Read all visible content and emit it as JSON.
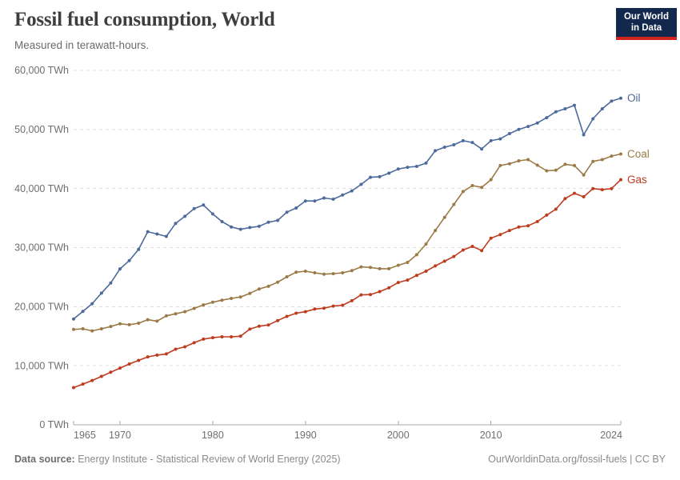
{
  "header": {
    "title": "Fossil fuel consumption, World",
    "subtitle": "Measured in terawatt-hours.",
    "logo": {
      "line1": "Our World",
      "line2": "in Data",
      "bg_color": "#12294D",
      "accent_color": "#CE261E"
    }
  },
  "footer": {
    "source_label": "Data source:",
    "source_text": " Energy Institute - Statistical Review of World Energy (2025)",
    "right_text": "OurWorldinData.org/fossil-fuels | CC BY"
  },
  "chart_data": {
    "type": "line",
    "title": "Fossil fuel consumption, World",
    "subtitle": "Measured in terawatt-hours.",
    "xlabel": "",
    "ylabel": "TWh",
    "xlim": [
      1965,
      2024
    ],
    "ylim": [
      0,
      60000
    ],
    "grid": "horizontal-dashed",
    "legend_position": "right-end-labels",
    "yticks": [
      0,
      10000,
      20000,
      30000,
      40000,
      50000,
      60000
    ],
    "ytick_labels": [
      "0 TWh",
      "10,000 TWh",
      "20,000 TWh",
      "30,000 TWh",
      "40,000 TWh",
      "50,000 TWh",
      "60,000 TWh"
    ],
    "xticks": [
      1965,
      1970,
      1980,
      1990,
      2000,
      2010,
      2024
    ],
    "xtick_labels": [
      "1965",
      "1970",
      "1980",
      "1990",
      "2000",
      "2010",
      "2024"
    ],
    "x": [
      1965,
      1966,
      1967,
      1968,
      1969,
      1970,
      1971,
      1972,
      1973,
      1974,
      1975,
      1976,
      1977,
      1978,
      1979,
      1980,
      1981,
      1982,
      1983,
      1984,
      1985,
      1986,
      1987,
      1988,
      1989,
      1990,
      1991,
      1992,
      1993,
      1994,
      1995,
      1996,
      1997,
      1998,
      1999,
      2000,
      2001,
      2002,
      2003,
      2004,
      2005,
      2006,
      2007,
      2008,
      2009,
      2010,
      2011,
      2012,
      2013,
      2014,
      2015,
      2016,
      2017,
      2018,
      2019,
      2020,
      2021,
      2022,
      2023,
      2024
    ],
    "series": [
      {
        "name": "Oil",
        "color": "#4C6A9C",
        "values": [
          17900,
          19200,
          20500,
          22300,
          24000,
          26400,
          27800,
          29700,
          32700,
          32300,
          31900,
          34100,
          35300,
          36600,
          37200,
          35700,
          34400,
          33500,
          33100,
          33400,
          33600,
          34300,
          34600,
          36000,
          36700,
          37900,
          37900,
          38400,
          38200,
          38900,
          39600,
          40700,
          41900,
          42000,
          42600,
          43300,
          43600,
          43750,
          44300,
          46400,
          47000,
          47400,
          48100,
          47800,
          46700,
          48100,
          48400,
          49300,
          50000,
          50500,
          51100,
          52000,
          53000,
          53500,
          54100,
          49100,
          51800,
          53500,
          54800,
          55300
        ]
      },
      {
        "name": "Coal",
        "color": "#9B7A47",
        "values": [
          16150,
          16250,
          15900,
          16250,
          16650,
          17100,
          16950,
          17200,
          17800,
          17550,
          18450,
          18800,
          19150,
          19700,
          20300,
          20750,
          21100,
          21400,
          21650,
          22250,
          23000,
          23450,
          24150,
          25050,
          25830,
          26000,
          25740,
          25510,
          25580,
          25740,
          26100,
          26740,
          26640,
          26420,
          26420,
          27000,
          27500,
          28800,
          30600,
          32900,
          35100,
          37300,
          39500,
          40500,
          40200,
          41500,
          43900,
          44200,
          44700,
          44900,
          43950,
          43000,
          43100,
          44100,
          43900,
          42300,
          44600,
          44900,
          45500,
          45850
        ]
      },
      {
        "name": "Gas",
        "color": "#BF3B1F",
        "values": [
          6300,
          6900,
          7500,
          8200,
          8900,
          9600,
          10300,
          10900,
          11500,
          11800,
          12000,
          12800,
          13200,
          13900,
          14500,
          14750,
          14900,
          14900,
          15000,
          16200,
          16700,
          16900,
          17650,
          18350,
          18900,
          19150,
          19600,
          19750,
          20100,
          20250,
          21000,
          22000,
          22050,
          22550,
          23200,
          24100,
          24500,
          25300,
          26000,
          26900,
          27700,
          28500,
          29600,
          30200,
          29500,
          31600,
          32200,
          32900,
          33500,
          33700,
          34400,
          35500,
          36500,
          38300,
          39200,
          38600,
          40000,
          39800,
          40000,
          41500
        ]
      }
    ]
  }
}
